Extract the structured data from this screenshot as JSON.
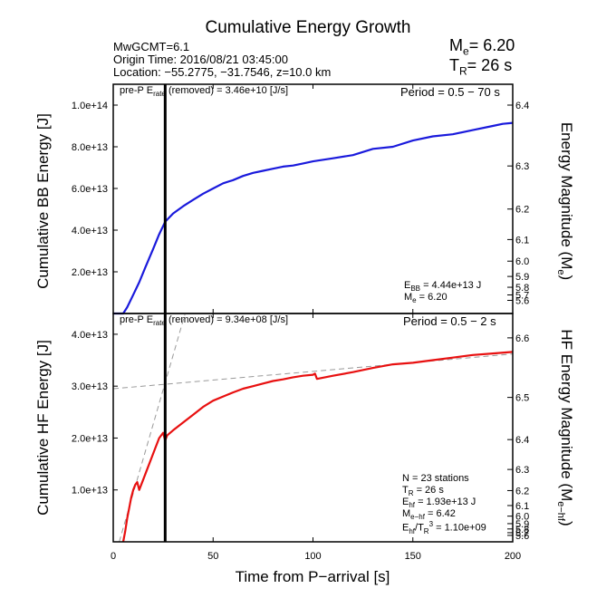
{
  "title": "Cumulative Energy Growth",
  "header": {
    "event": "MwGCMT=6.1",
    "origin": "Origin Time: 2016/08/21 03:45:00",
    "location": "Location: −55.2775, −31.7546, z=10.0 km",
    "me_sym": "M",
    "me_sub": "e",
    "me_val": "= 6.20",
    "tr_sym": "T",
    "tr_sub": "R",
    "tr_val": "= 26 s"
  },
  "top": {
    "ylabel": "Cumulative BB Energy [J]",
    "ylabel_right": "Energy Magnitude (M",
    "ylabel_right_sub": "e",
    "ylabel_right_end": ")",
    "prep_a": "pre-P E",
    "prep_sub": "rate",
    "prep_b": " (removed) = 3.46e+10 [J/s]",
    "period": "Period = 0.5 − 70 s",
    "ebb_a": "E",
    "ebb_sub": "BB",
    "ebb_b": " = 4.44e+13 J",
    "me_a": "M",
    "me_sub": "e",
    "me_b": " = 6.20"
  },
  "bottom": {
    "ylabel": "Cumulative HF Energy [J]",
    "ylabel_right": "HF Energy Magnitude (M",
    "ylabel_right_sub": "e−hf",
    "ylabel_right_end": ")",
    "prep_a": "pre-P E",
    "prep_sub": "rate",
    "prep_b": " (removed) = 9.34e+08 [J/s]",
    "period": "Period = 0.5 − 2 s",
    "n": "N = 23 stations",
    "tr_a": "T",
    "tr_sub": "R",
    "tr_b": " = 26  s",
    "ehf_a": "E",
    "ehf_sub": "hf",
    "ehf_b": " = 1.93e+13 J",
    "mehf_a": "M",
    "mehf_sub": "e−hf",
    "mehf_b": " = 6.42",
    "ratio_a": "E",
    "ratio_sub": "hf",
    "ratio_mid": "/T",
    "ratio_sub2": "R",
    "ratio_sup": "3",
    "ratio_b": " =  1.10e+09"
  },
  "xlabel": "Time from P−arrival [s]",
  "colors": {
    "bb": "#1a1adc",
    "hf": "#e81010",
    "guide": "#999999"
  },
  "chart_data": [
    {
      "type": "line",
      "title": "Cumulative Energy Growth",
      "ylabel": "Cumulative BB Energy [J]",
      "ylabel_right": "Energy Magnitude (Me)",
      "xlim": [
        0,
        200
      ],
      "ylim": [
        0,
        110000000000000.0
      ],
      "yticks": [
        "2.0e+13",
        "4.0e+13",
        "6.0e+13",
        "8.0e+13",
        "1.0e+14"
      ],
      "yticks_right": [
        "5.6",
        "5.7",
        "5.8",
        "5.9",
        "6.0",
        "6.1",
        "6.2",
        "6.3",
        "6.4"
      ],
      "vline_x": 26,
      "series": [
        {
          "x": [
            0,
            5,
            7,
            10,
            13,
            16,
            20,
            23,
            26,
            30,
            35,
            40,
            45,
            50,
            55,
            60,
            65,
            70,
            75,
            80,
            85,
            90,
            95,
            100,
            110,
            120,
            130,
            140,
            150,
            160,
            170,
            180,
            190,
            195,
            200
          ],
          "y": [
            0,
            0,
            3000000000000.0,
            9000000000000.0,
            15000000000000.0,
            22000000000000.0,
            31000000000000.0,
            38000000000000.0,
            44000000000000.0,
            48000000000000.0,
            51500000000000.0,
            54500000000000.0,
            57500000000000.0,
            60000000000000.0,
            62500000000000.0,
            64000000000000.0,
            66000000000000.0,
            67500000000000.0,
            68500000000000.0,
            69500000000000.0,
            70500000000000.0,
            71000000000000.0,
            72000000000000.0,
            73000000000000.0,
            74500000000000.0,
            76000000000000.0,
            79000000000000.0,
            80000000000000.0,
            83000000000000.0,
            85000000000000.0,
            86000000000000.0,
            88000000000000.0,
            90000000000000.0,
            91000000000000.0,
            91500000000000.0
          ]
        }
      ]
    },
    {
      "type": "line",
      "ylabel": "Cumulative HF Energy [J]",
      "ylabel_right": "HF Energy Magnitude (Me-hf)",
      "xlabel": "Time from P−arrival [s]",
      "xlim": [
        0,
        200
      ],
      "ylim": [
        0,
        44000000000000.0
      ],
      "xticks": [
        "0",
        "50",
        "100",
        "150",
        "200"
      ],
      "yticks": [
        "1.0e+13",
        "2.0e+13",
        "3.0e+13",
        "4.0e+13"
      ],
      "yticks_right": [
        "5.6",
        "5.7",
        "5.8",
        "5.9",
        "6.0",
        "6.1",
        "6.2",
        "6.3",
        "6.4",
        "6.5",
        "6.6"
      ],
      "vline_x": 26,
      "series": [
        {
          "x": [
            5,
            6,
            7,
            8,
            9,
            10,
            11,
            12,
            13,
            15,
            17,
            19,
            21,
            23,
            25,
            26,
            27,
            30,
            35,
            40,
            45,
            50,
            55,
            60,
            65,
            70,
            75,
            80,
            85,
            90,
            95,
            100,
            101,
            102,
            110,
            120,
            130,
            140,
            150,
            160,
            170,
            180,
            190,
            200
          ],
          "y": [
            0,
            2000000000000.0,
            4500000000000.0,
            6500000000000.0,
            8500000000000.0,
            10000000000000.0,
            11000000000000.0,
            11500000000000.0,
            10000000000000.0,
            12000000000000.0,
            14000000000000.0,
            16000000000000.0,
            18000000000000.0,
            20000000000000.0,
            21000000000000.0,
            19500000000000.0,
            20500000000000.0,
            21500000000000.0,
            23000000000000.0,
            24500000000000.0,
            26000000000000.0,
            27200000000000.0,
            28000000000000.0,
            28800000000000.0,
            29500000000000.0,
            30000000000000.0,
            30500000000000.0,
            31000000000000.0,
            31300000000000.0,
            31700000000000.0,
            32000000000000.0,
            32200000000000.0,
            32400000000000.0,
            31400000000000.0,
            32000000000000.0,
            32700000000000.0,
            33500000000000.0,
            34200000000000.0,
            34500000000000.0,
            35000000000000.0,
            35500000000000.0,
            36000000000000.0,
            36300000000000.0,
            36600000000000.0
          ]
        }
      ],
      "guides": [
        {
          "x": [
            0,
            200
          ],
          "y": [
            29500000000000.0,
            36200000000000.0
          ]
        },
        {
          "x": [
            3,
            36
          ],
          "y": [
            0,
            44000000000000.0
          ]
        }
      ]
    }
  ]
}
